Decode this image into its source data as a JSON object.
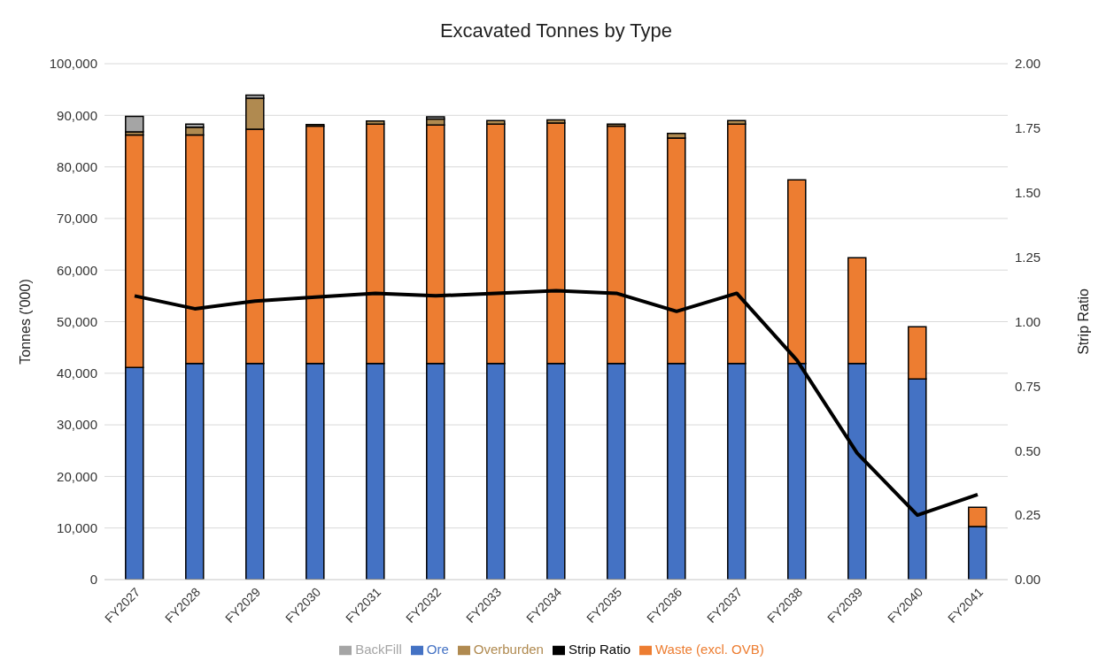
{
  "chart_data": {
    "type": "bar",
    "title": "Excavated Tonnes by Type",
    "ylabel": "Tonnes ('000)",
    "y2label": "Strip Ratio",
    "stacked": true,
    "grid": "y",
    "legend": "bottom",
    "categories": [
      "FY2027",
      "FY2028",
      "FY2029",
      "FY2030",
      "FY2031",
      "FY2032",
      "FY2033",
      "FY2034",
      "FY2035",
      "FY2036",
      "FY2037",
      "FY2038",
      "FY2039",
      "FY2040",
      "FY2041"
    ],
    "ylim": [
      0,
      100000
    ],
    "yticks": [
      {
        "value": 0,
        "label": "0"
      },
      {
        "value": 10000,
        "label": "10,000"
      },
      {
        "value": 20000,
        "label": "20,000"
      },
      {
        "value": 30000,
        "label": "30,000"
      },
      {
        "value": 40000,
        "label": "40,000"
      },
      {
        "value": 50000,
        "label": "50,000"
      },
      {
        "value": 60000,
        "label": "60,000"
      },
      {
        "value": 70000,
        "label": "70,000"
      },
      {
        "value": 80000,
        "label": "80,000"
      },
      {
        "value": 90000,
        "label": "90,000"
      },
      {
        "value": 100000,
        "label": "100,000"
      }
    ],
    "y2lim": [
      0,
      2
    ],
    "y2ticks": [
      {
        "value": 0,
        "label": "0.00"
      },
      {
        "value": 0.25,
        "label": "0.25"
      },
      {
        "value": 0.5,
        "label": "0.50"
      },
      {
        "value": 0.75,
        "label": "0.75"
      },
      {
        "value": 1,
        "label": "1.00"
      },
      {
        "value": 1.25,
        "label": "1.25"
      },
      {
        "value": 1.5,
        "label": "1.50"
      },
      {
        "value": 1.75,
        "label": "1.75"
      },
      {
        "value": 2,
        "label": "2.00"
      }
    ],
    "series": [
      {
        "name": "Ore",
        "color": "#4472c4",
        "values": [
          41100,
          41900,
          41900,
          41900,
          41900,
          41900,
          41900,
          41900,
          41900,
          41900,
          41900,
          41900,
          41900,
          38900,
          10300
        ]
      },
      {
        "name": "Waste (excl. OVB)",
        "color": "#ed7d31",
        "values": [
          45100,
          44300,
          45400,
          46000,
          46400,
          46200,
          46400,
          46600,
          46000,
          43700,
          46400,
          35600,
          20500,
          10100,
          3700
        ]
      },
      {
        "name": "Overburden",
        "color": "#b08a50",
        "values": [
          600,
          1500,
          6000,
          300,
          600,
          1200,
          700,
          600,
          400,
          900,
          700,
          null,
          null,
          null,
          null
        ]
      },
      {
        "name": "BackFill",
        "color": "#a5a5a5",
        "values": [
          3000,
          600,
          600,
          null,
          null,
          400,
          null,
          null,
          null,
          null,
          null,
          null,
          null,
          null,
          null
        ]
      },
      {
        "name": "Strip Ratio",
        "type": "line",
        "axis": "y2",
        "color": "#000000",
        "marker": "none",
        "values": [
          1.1,
          1.05,
          1.08,
          1.095,
          1.11,
          1.1,
          1.11,
          1.12,
          1.11,
          1.04,
          1.11,
          0.85,
          0.49,
          0.25,
          0.33
        ]
      }
    ]
  }
}
